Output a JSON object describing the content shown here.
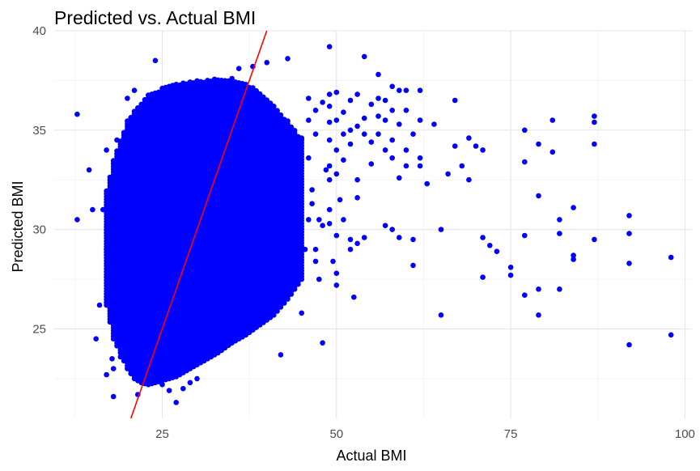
{
  "chart_data": {
    "type": "scatter",
    "title": "Predicted vs. Actual BMI",
    "xlabel": "Actual BMI",
    "ylabel": "Predicted BMI",
    "xlim": [
      9.5,
      101
    ],
    "ylim": [
      20.5,
      40
    ],
    "xticks": [
      25,
      50,
      75,
      100
    ],
    "yticks": [
      25,
      30,
      35,
      40
    ],
    "grid": true,
    "point_color": "#0000ff",
    "reference_line": {
      "color": "#ff0000",
      "slope": 1,
      "intercept": 0,
      "x_range": [
        20.5,
        40
      ]
    },
    "dense_cloud": {
      "x_from": 17,
      "x_to": 45,
      "x_step": 0.5,
      "y_bottom": [
        [
          17,
          26.2
        ],
        [
          18,
          24.5
        ],
        [
          19,
          23.8
        ],
        [
          20,
          23.0
        ],
        [
          21,
          22.5
        ],
        [
          22,
          22.3
        ],
        [
          23,
          22.2
        ],
        [
          24,
          22.3
        ],
        [
          25,
          22.4
        ],
        [
          27,
          22.6
        ],
        [
          29,
          23.0
        ],
        [
          31,
          23.4
        ],
        [
          33,
          23.8
        ],
        [
          35,
          24.3
        ],
        [
          37,
          24.7
        ],
        [
          39,
          25.2
        ],
        [
          41,
          25.7
        ],
        [
          43,
          26.5
        ],
        [
          45,
          27.5
        ]
      ],
      "y_top": [
        [
          17,
          32.0
        ],
        [
          18,
          33.5
        ],
        [
          19,
          34.5
        ],
        [
          20,
          35.5
        ],
        [
          21,
          36.0
        ],
        [
          22,
          36.4
        ],
        [
          23,
          36.8
        ],
        [
          25,
          37.1
        ],
        [
          27,
          37.3
        ],
        [
          30,
          37.5
        ],
        [
          33,
          37.6
        ],
        [
          35,
          37.6
        ],
        [
          37,
          37.4
        ],
        [
          39,
          36.9
        ],
        [
          41,
          36.2
        ],
        [
          43,
          35.5
        ],
        [
          45,
          34.5
        ]
      ]
    },
    "points": [
      [
        12.8,
        35.8
      ],
      [
        12.8,
        30.5
      ],
      [
        14.5,
        33.0
      ],
      [
        15.0,
        31.0
      ],
      [
        16.5,
        31.0
      ],
      [
        16.0,
        26.2
      ],
      [
        15.5,
        24.5
      ],
      [
        17.0,
        34.0
      ],
      [
        17.5,
        31.8
      ],
      [
        17.0,
        29.0
      ],
      [
        17.8,
        23.5
      ],
      [
        17.0,
        22.7
      ],
      [
        18.0,
        21.6
      ],
      [
        18.5,
        34.5
      ],
      [
        18.0,
        23.0
      ],
      [
        19.0,
        23.6
      ],
      [
        20.0,
        36.6
      ],
      [
        21.0,
        37.0
      ],
      [
        21.5,
        21.7
      ],
      [
        23.0,
        23.3
      ],
      [
        24.0,
        38.5
      ],
      [
        27.0,
        21.3
      ],
      [
        28.0,
        22.0
      ],
      [
        29.0,
        22.3
      ],
      [
        30.0,
        22.5
      ],
      [
        25.0,
        22.2
      ],
      [
        26.0,
        21.9
      ],
      [
        36.0,
        38.1
      ],
      [
        38.0,
        38.2
      ],
      [
        40.0,
        38.4
      ],
      [
        43.0,
        38.6
      ],
      [
        42.0,
        23.7
      ],
      [
        45.0,
        25.8
      ],
      [
        46.0,
        30.5
      ],
      [
        45.5,
        29.0
      ],
      [
        45.0,
        34.6
      ],
      [
        45.0,
        33.8
      ],
      [
        46.0,
        36.6
      ],
      [
        46.0,
        35.5
      ],
      [
        46.0,
        33.6
      ],
      [
        46.5,
        32.0
      ],
      [
        46.5,
        31.3
      ],
      [
        47.0,
        34.8
      ],
      [
        47.0,
        36.0
      ],
      [
        47.0,
        29.0
      ],
      [
        47.0,
        28.4
      ],
      [
        47.5,
        30.5
      ],
      [
        47.5,
        27.5
      ],
      [
        48.0,
        36.4
      ],
      [
        48.0,
        30.2
      ],
      [
        48.0,
        24.3
      ],
      [
        48.5,
        33.0
      ],
      [
        49.0,
        39.2
      ],
      [
        49.0,
        36.8
      ],
      [
        49.0,
        36.2
      ],
      [
        49.0,
        35.4
      ],
      [
        49.0,
        34.5
      ],
      [
        49.0,
        33.2
      ],
      [
        49.0,
        32.5
      ],
      [
        49.0,
        31.0
      ],
      [
        49.0,
        30.3
      ],
      [
        49.5,
        28.4
      ],
      [
        50.0,
        36.9
      ],
      [
        50.0,
        35.5
      ],
      [
        50.0,
        34.0
      ],
      [
        50.0,
        32.8
      ],
      [
        50.0,
        29.7
      ],
      [
        50.0,
        27.8
      ],
      [
        50.0,
        27.2
      ],
      [
        50.5,
        31.5
      ],
      [
        51.0,
        35.9
      ],
      [
        51.0,
        34.8
      ],
      [
        51.0,
        33.5
      ],
      [
        51.0,
        30.5
      ],
      [
        52.0,
        36.5
      ],
      [
        52.0,
        35.0
      ],
      [
        52.0,
        34.3
      ],
      [
        52.0,
        29.5
      ],
      [
        52.0,
        29.0
      ],
      [
        52.5,
        26.6
      ],
      [
        53.0,
        36.8
      ],
      [
        53.0,
        35.2
      ],
      [
        53.0,
        32.5
      ],
      [
        53.0,
        31.6
      ],
      [
        53.0,
        29.3
      ],
      [
        54.0,
        38.7
      ],
      [
        54.0,
        35.6
      ],
      [
        54.0,
        34.8
      ],
      [
        54.0,
        29.6
      ],
      [
        55.0,
        36.3
      ],
      [
        55.0,
        34.4
      ],
      [
        55.0,
        33.3
      ],
      [
        56.0,
        37.8
      ],
      [
        56.0,
        36.6
      ],
      [
        56.0,
        35.7
      ],
      [
        56.0,
        34.8
      ],
      [
        57.0,
        36.5
      ],
      [
        57.0,
        35.5
      ],
      [
        57.0,
        34.0
      ],
      [
        57.0,
        30.2
      ],
      [
        58.0,
        37.2
      ],
      [
        58.0,
        36.0
      ],
      [
        58.0,
        34.5
      ],
      [
        58.0,
        33.6
      ],
      [
        58.0,
        30.0
      ],
      [
        59.0,
        37.0
      ],
      [
        59.0,
        35.3
      ],
      [
        59.0,
        32.6
      ],
      [
        59.0,
        29.6
      ],
      [
        60.0,
        37.0
      ],
      [
        60.0,
        36.0
      ],
      [
        60.0,
        34.0
      ],
      [
        60.0,
        33.2
      ],
      [
        61.0,
        34.8
      ],
      [
        61.0,
        29.5
      ],
      [
        61.0,
        28.2
      ],
      [
        62.0,
        37.0
      ],
      [
        62.0,
        35.5
      ],
      [
        62.0,
        33.6
      ],
      [
        62.0,
        33.2
      ],
      [
        63.0,
        32.3
      ],
      [
        64.0,
        35.3
      ],
      [
        65.0,
        30.0
      ],
      [
        65.0,
        25.7
      ],
      [
        66.0,
        32.8
      ],
      [
        67.0,
        36.5
      ],
      [
        67.0,
        34.2
      ],
      [
        68.0,
        33.2
      ],
      [
        69.0,
        34.6
      ],
      [
        69.0,
        32.5
      ],
      [
        70.0,
        34.2
      ],
      [
        71.0,
        34.0
      ],
      [
        71.0,
        29.6
      ],
      [
        71.0,
        27.6
      ],
      [
        72.0,
        29.2
      ],
      [
        73.0,
        28.9
      ],
      [
        75.0,
        28.1
      ],
      [
        75.0,
        27.7
      ],
      [
        77.0,
        35.0
      ],
      [
        77.0,
        33.4
      ],
      [
        77.0,
        29.7
      ],
      [
        77.0,
        26.7
      ],
      [
        79.0,
        34.3
      ],
      [
        79.0,
        31.7
      ],
      [
        79.0,
        27.0
      ],
      [
        79.0,
        25.7
      ],
      [
        81.0,
        35.5
      ],
      [
        81.0,
        33.9
      ],
      [
        82.0,
        30.5
      ],
      [
        82.0,
        29.8
      ],
      [
        82.0,
        27.0
      ],
      [
        84.0,
        31.1
      ],
      [
        84.0,
        28.7
      ],
      [
        84.0,
        28.5
      ],
      [
        87.0,
        35.7
      ],
      [
        87.0,
        35.4
      ],
      [
        87.0,
        34.3
      ],
      [
        87.0,
        29.5
      ],
      [
        92.0,
        30.7
      ],
      [
        92.0,
        29.8
      ],
      [
        92.0,
        28.3
      ],
      [
        92.0,
        24.2
      ],
      [
        98.0,
        28.6
      ],
      [
        98.0,
        24.7
      ]
    ]
  }
}
